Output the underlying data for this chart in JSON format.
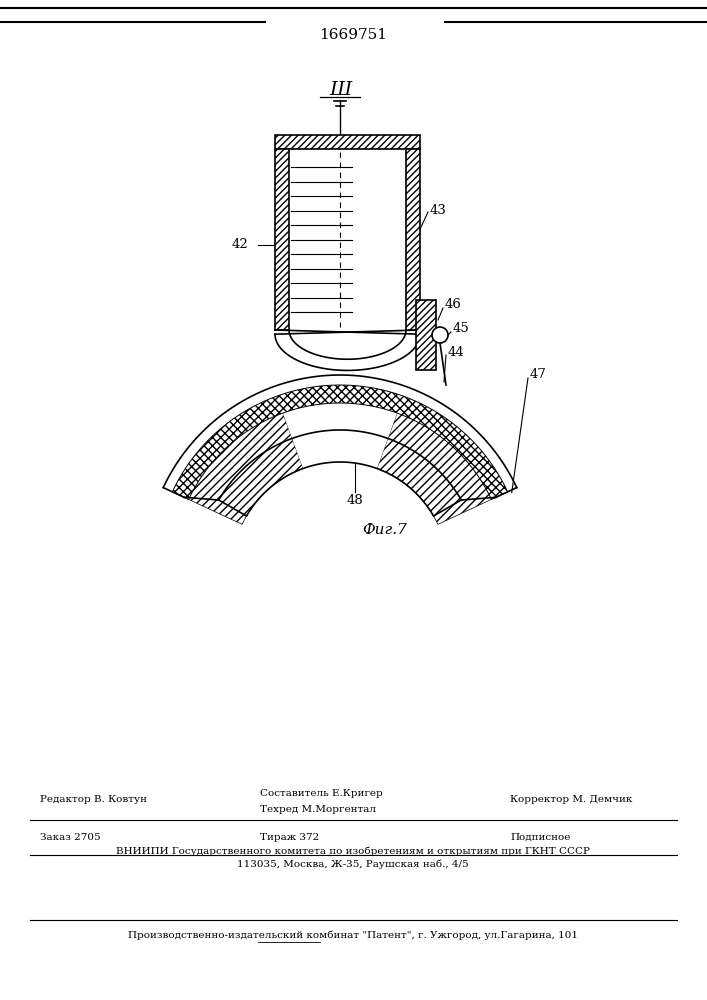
{
  "title_patent": "1669751",
  "figure_label": "Фиг.7",
  "bg_color": "#ffffff",
  "line_color": "#000000",
  "footer_line1_left": "Редактор В. Ковтун",
  "footer_line1_center": "Составитель Е.Кригер",
  "footer_line2_center": "Техред М.Моргентал",
  "footer_line1_right": "Корректор М. Демчик",
  "footer2_left": "Заказ 2705",
  "footer2_center": "Тираж 372",
  "footer2_right": "Подписное",
  "footer3": "ВНИИПИ Государственного комитета по изобретениям и открытиям при ГКНТ СССР",
  "footer4": "113035, Москва, Ж-35, Раушская наб., 4/5",
  "footer5": "Производственно-издательский комбинат \"Патент\", г. Ужгород, ул.Гагарина, 101"
}
